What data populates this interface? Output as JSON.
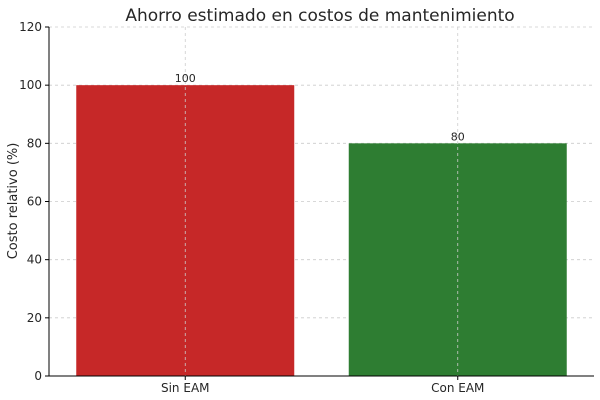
{
  "chart_data": {
    "type": "bar",
    "title": "Ahorro estimado en costos de mantenimiento",
    "xlabel": "",
    "ylabel": "Costo relativo (%)",
    "categories": [
      "Sin EAM",
      "Con EAM"
    ],
    "values": [
      100,
      80
    ],
    "data_labels": [
      "100",
      "80"
    ],
    "colors": [
      "#c62828",
      "#2e7d32"
    ],
    "ylim": [
      0,
      120
    ],
    "yticks": [
      0,
      20,
      40,
      60,
      80,
      100,
      120
    ],
    "grid": true
  }
}
